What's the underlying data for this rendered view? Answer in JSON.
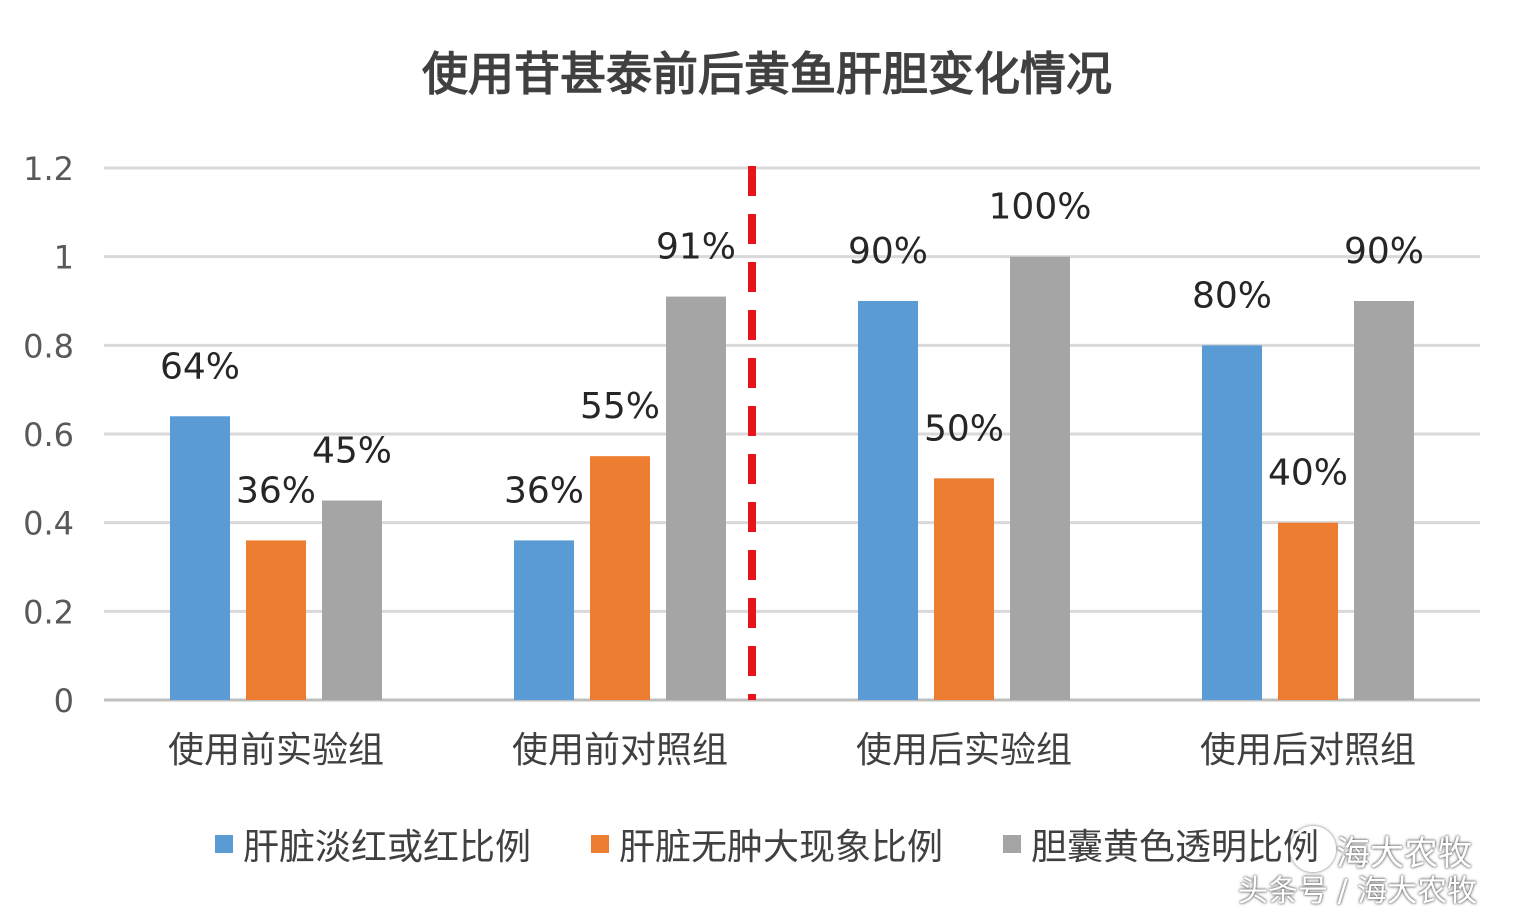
{
  "chart_data": {
    "type": "bar",
    "title": "使用苷甚泰前后黄鱼肝胆变化情况",
    "categories": [
      "使用前实验组",
      "使用前对照组",
      "使用后实验组",
      "使用后对照组"
    ],
    "series": [
      {
        "name": "肝脏淡红或红比例",
        "values": [
          0.64,
          0.36,
          0.9,
          0.8
        ],
        "labels": [
          "64%",
          "36%",
          "90%",
          "80%"
        ],
        "color": "#5b9bd5"
      },
      {
        "name": "肝脏无肿大现象比例",
        "values": [
          0.36,
          0.55,
          0.5,
          0.4
        ],
        "labels": [
          "36%",
          "55%",
          "50%",
          "40%"
        ],
        "color": "#ed7d31"
      },
      {
        "name": "胆囊黄色透明比例",
        "values": [
          0.45,
          0.91,
          1.0,
          0.9
        ],
        "labels": [
          "45%",
          "91%",
          "100%",
          "90%"
        ],
        "color": "#a5a5a5"
      }
    ],
    "yticks": [
      "0",
      "0.2",
      "0.4",
      "0.6",
      "0.8",
      "1",
      "1.2"
    ],
    "ylim": [
      0,
      1.2
    ],
    "grid": true,
    "legend_position": "bottom",
    "separator": {
      "after_category": 1,
      "color": "#e8141c",
      "style": "dashed"
    }
  },
  "watermark": {
    "line1": "海大农牧",
    "line2": "头条号 / 海大农牧"
  }
}
